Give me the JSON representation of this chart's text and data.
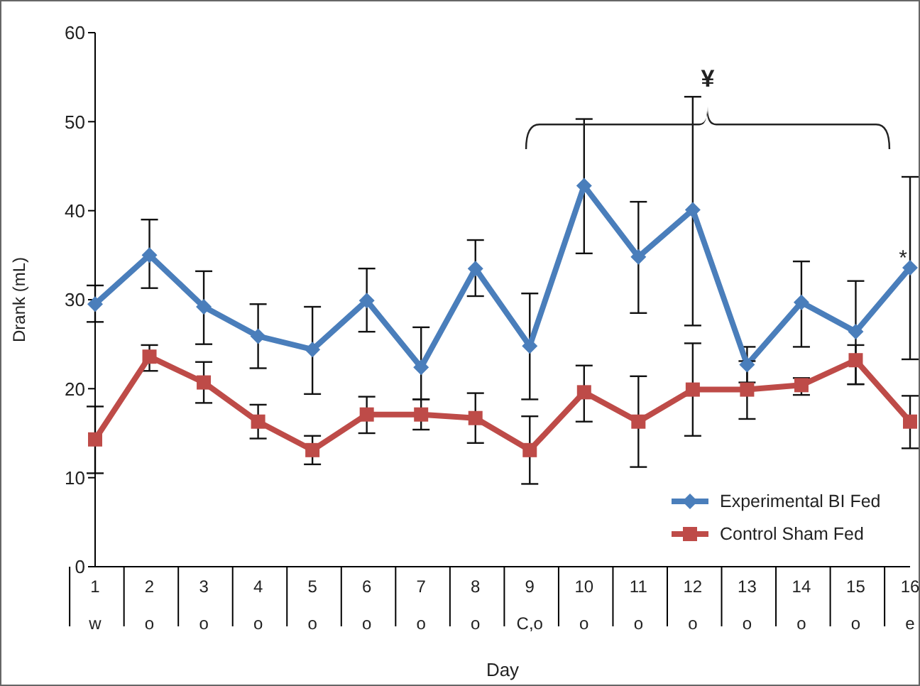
{
  "chart_data": {
    "type": "line",
    "xlabel": "Day",
    "ylabel": "Drank (mL)",
    "categories": [
      "1\nw",
      "2\no",
      "3\no",
      "4\no",
      "5\no",
      "6\no",
      "7\no",
      "8\no",
      "9\nC,o",
      "10\no",
      "11\no",
      "12\no",
      "13\no",
      "14\no",
      "15\no",
      "16\ne"
    ],
    "series": [
      {
        "name": "Experimental BI Fed",
        "color": "#4a7ebb",
        "marker": "diamond",
        "values": [
          29.5,
          35.0,
          29.2,
          25.9,
          24.4,
          29.9,
          22.4,
          33.5,
          24.8,
          42.8,
          34.8,
          40.1,
          22.7,
          29.7,
          26.4,
          33.6
        ],
        "errors": [
          [
            27.5,
            31.6
          ],
          [
            31.3,
            39.0
          ],
          [
            25.0,
            33.2
          ],
          [
            22.3,
            29.5
          ],
          [
            19.4,
            29.2
          ],
          [
            26.4,
            33.5
          ],
          [
            18.8,
            26.9
          ],
          [
            30.4,
            36.7
          ],
          [
            18.8,
            30.7
          ],
          [
            35.2,
            50.3
          ],
          [
            28.5,
            41.0
          ],
          [
            27.1,
            52.8
          ],
          [
            20.7,
            24.7
          ],
          [
            24.7,
            34.3
          ],
          [
            20.5,
            32.1
          ],
          [
            23.3,
            43.8
          ]
        ]
      },
      {
        "name": "Control Sham Fed",
        "color": "#be4b48",
        "marker": "square",
        "values": [
          14.3,
          23.6,
          20.7,
          16.3,
          13.1,
          17.1,
          17.1,
          16.7,
          13.1,
          19.6,
          16.3,
          19.9,
          19.9,
          20.4,
          23.2,
          16.3
        ],
        "errors": [
          [
            10.5,
            18.0
          ],
          [
            22.0,
            24.9
          ],
          [
            18.4,
            23.0
          ],
          [
            14.4,
            18.2
          ],
          [
            11.5,
            14.7
          ],
          [
            15.0,
            19.1
          ],
          [
            15.4,
            18.8
          ],
          [
            13.9,
            19.5
          ],
          [
            9.3,
            16.9
          ],
          [
            16.3,
            22.6
          ],
          [
            11.2,
            21.4
          ],
          [
            14.7,
            25.1
          ],
          [
            16.6,
            23.1
          ],
          [
            19.3,
            21.2
          ],
          [
            20.5,
            24.9
          ],
          [
            13.3,
            19.2
          ]
        ]
      }
    ],
    "ylim": [
      0,
      60
    ],
    "yticks": [
      0,
      10,
      20,
      30,
      40,
      50,
      60
    ],
    "legend": "bottom right",
    "line_style": "solid",
    "annotations": [
      "¥",
      "*"
    ]
  }
}
